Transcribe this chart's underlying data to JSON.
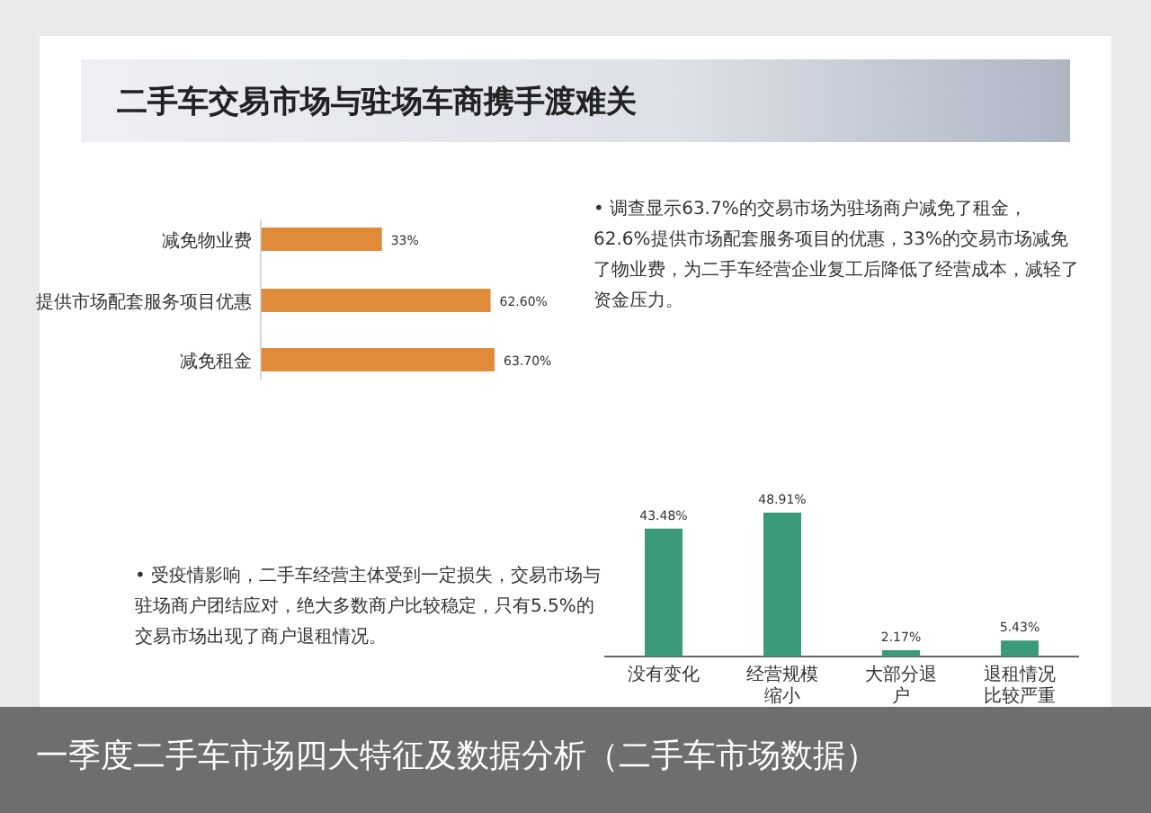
{
  "chart_data": [
    {
      "type": "bar",
      "orientation": "horizontal",
      "title": "二手车交易市场与驻场车商携手渡难关",
      "categories": [
        "减免物业费",
        "提供市场配套服务项目优惠",
        "减免租金"
      ],
      "values": [
        33,
        62.6,
        63.7
      ],
      "value_labels": [
        "33%",
        "62.60%",
        "63.70%"
      ],
      "color": "#e08b3a",
      "annotations": [
        "• 调查显示63.7%的交易市场为驻场商户减免了租金，62.6%提供市场配套服务项目的优惠，33%的交易市场减免了物业费，为二手车经营企业复工后降低了经营成本，减轻了资金压力。"
      ]
    },
    {
      "type": "bar",
      "categories": [
        "没有变化",
        "经营规模缩小",
        "大部分退户",
        "退租情况比较严重"
      ],
      "values": [
        43.48,
        48.91,
        2.17,
        5.43
      ],
      "value_labels": [
        "43.48%",
        "48.91%",
        "2.17%",
        "5.43%"
      ],
      "color": "#3a9a7a",
      "annotations": [
        "• 受疫情影响，二手车经营主体受到一定损失，交易市场与驻场商户团结应对，绝大多数商户比较稳定，只有5.5%的交易市场出现了商户退租情况。",
        "一季度二手车市场四大特征及数据分析（二手车市场数据）"
      ]
    }
  ]
}
